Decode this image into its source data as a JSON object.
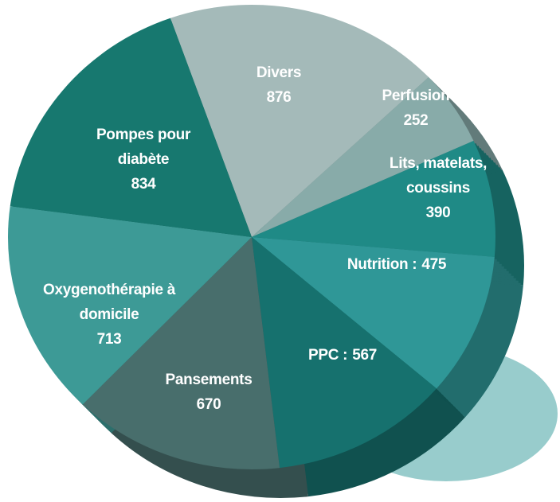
{
  "chart_data": {
    "type": "pie",
    "categories": [
      "Divers",
      "Perfusion",
      "Lits, matelats, coussins",
      "Nutrition :",
      "PPC :",
      "Pansements",
      "Oxygenothérapie à domicile",
      "Pompes pour diabète"
    ],
    "values": [
      876,
      252,
      390,
      475,
      567,
      670,
      713,
      834
    ],
    "colors": [
      "#a4bab9",
      "#88aba9",
      "#1f8a86",
      "#2f9797",
      "#16716e",
      "#486e6c",
      "#3d9a96",
      "#17786f"
    ]
  }
}
